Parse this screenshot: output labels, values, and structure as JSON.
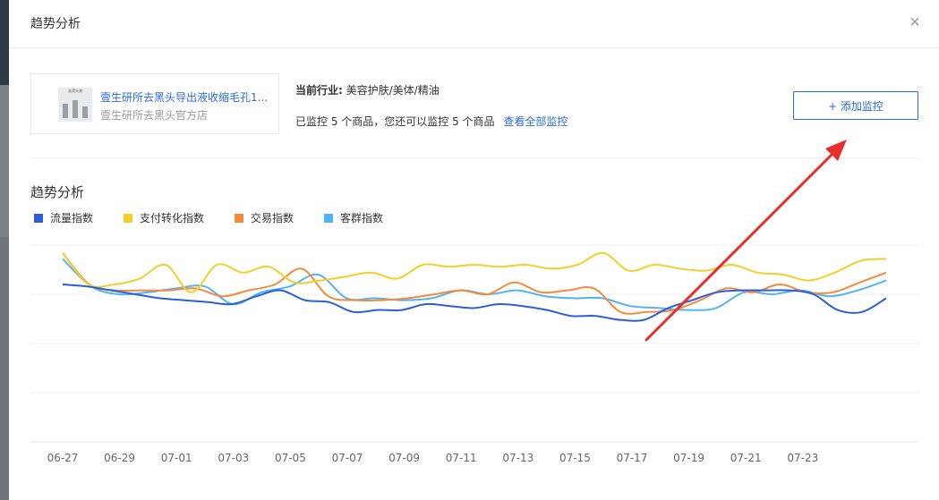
{
  "dialog": {
    "title": "趋势分析",
    "close_icon": "×"
  },
  "product": {
    "thumb_text": "去黑头液",
    "name": "壹生研所去黑头导出液收缩毛孔1...",
    "shop": "壹生研所去黑头官方店"
  },
  "info": {
    "industry_label": "当前行业:",
    "industry_value": "美容护肤/美体/精油",
    "monitor_text": "已监控 5 个商品，您还可以监控 5 个商品",
    "view_all_link": "查看全部监控"
  },
  "add_monitor_label": "+ 添加监控",
  "section_title": "趋势分析",
  "colors": {
    "accent": "#2d6bd6",
    "arrow": "#e8302b"
  },
  "chart_data": {
    "type": "line",
    "title": "",
    "xlabel": "",
    "ylabel": "",
    "ylim": [
      0,
      100
    ],
    "grid": true,
    "legend": "top-left",
    "x_tick_labels": [
      "06-27",
      "06-29",
      "07-01",
      "07-03",
      "07-05",
      "07-07",
      "07-09",
      "07-11",
      "07-13",
      "07-15",
      "07-17",
      "07-19",
      "07-21",
      "07-23"
    ],
    "series": [
      {
        "name": "流量指数",
        "color": "#2b5fd9",
        "values": [
          80,
          79,
          77,
          75,
          73,
          72,
          71,
          70,
          74,
          77,
          72,
          71,
          66,
          67,
          67,
          70,
          69,
          68,
          70,
          69,
          67,
          64,
          64,
          62,
          62,
          68,
          72,
          76,
          77,
          77,
          77,
          75,
          67,
          66,
          73
        ]
      },
      {
        "name": "支付转化指数",
        "color": "#f2cf2a",
        "values": [
          96,
          80,
          80,
          83,
          90,
          76,
          90,
          86,
          89,
          81,
          82,
          84,
          86,
          83,
          90,
          89,
          90,
          89,
          90,
          88,
          90,
          96,
          87,
          90,
          88,
          87,
          90,
          86,
          85,
          82,
          86,
          92,
          93
        ]
      },
      {
        "name": "交易指数",
        "color": "#f58a3d",
        "values": [
          96,
          80,
          77,
          77,
          77,
          78,
          74,
          77,
          80,
          88,
          74,
          72,
          72,
          73,
          75,
          77,
          75,
          81,
          76,
          77,
          78,
          66,
          66,
          67,
          72,
          78,
          76,
          80,
          76,
          76,
          81,
          86
        ]
      },
      {
        "name": "客群指数",
        "color": "#52b4f0",
        "values": [
          93,
          79,
          75,
          76,
          78,
          79,
          70,
          76,
          79,
          85,
          73,
          73,
          72,
          73,
          77,
          75,
          77,
          74,
          73,
          73,
          69,
          68,
          67,
          68,
          76,
          75,
          77,
          74,
          77,
          82
        ]
      }
    ]
  }
}
